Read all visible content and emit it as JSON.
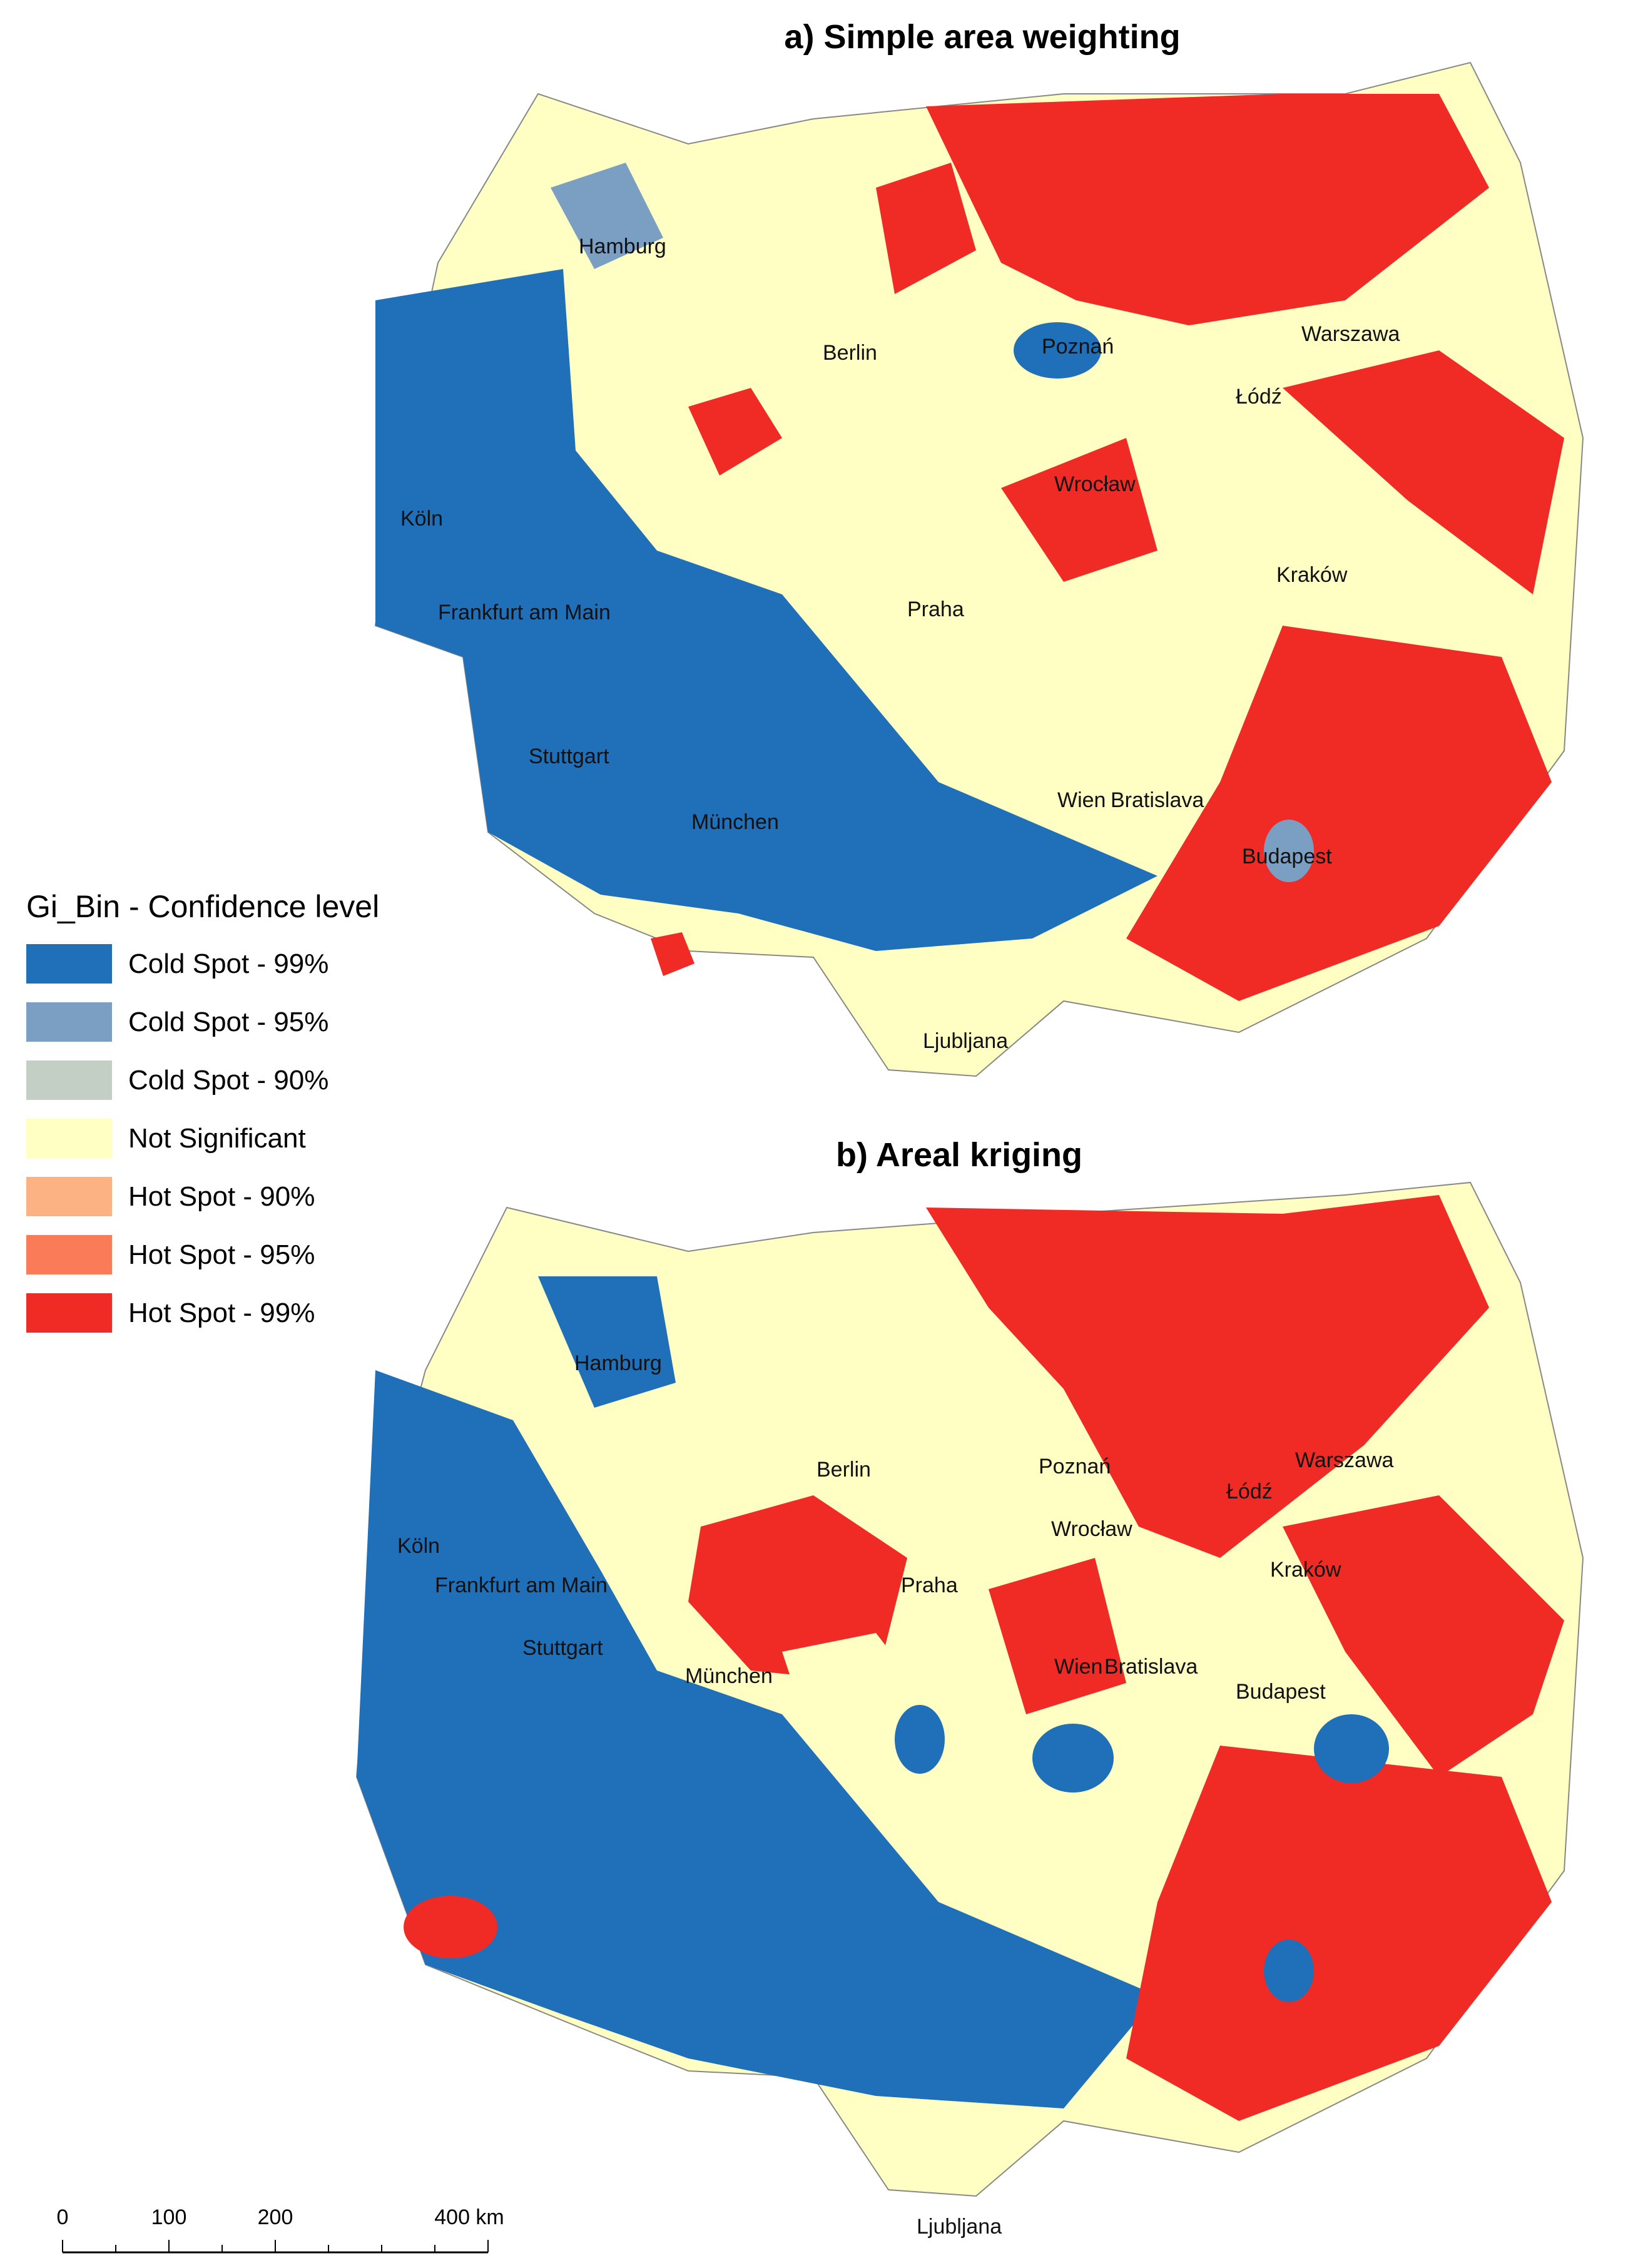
{
  "panels": [
    {
      "id": "a",
      "title": "a) Simple area weighting"
    },
    {
      "id": "b",
      "title": "b) Areal kriging"
    }
  ],
  "cities": [
    "Hamburg",
    "Berlin",
    "Poznań",
    "Warszawa",
    "Łódź",
    "Köln",
    "Wrocław",
    "Kraków",
    "Frankfurt am Main",
    "Praha",
    "Stuttgart",
    "München",
    "Wien",
    "Bratislava",
    "Budapest",
    "Ljubljana"
  ],
  "legend": {
    "title": "Gi_Bin - Confidence level",
    "items": [
      {
        "label": "Cold Spot - 99%",
        "color": "#1f6fb9"
      },
      {
        "label": "Cold Spot - 95%",
        "color": "#7b9fc3"
      },
      {
        "label": "Cold Spot - 90%",
        "color": "#c3cfc4"
      },
      {
        "label": "Not Significant",
        "color": "#ffffc4"
      },
      {
        "label": "Hot Spot - 90%",
        "color": "#fcb283"
      },
      {
        "label": "Hot Spot - 95%",
        "color": "#f97b57"
      },
      {
        "label": "Hot Spot - 99%",
        "color": "#f02b25"
      }
    ]
  },
  "scale": {
    "ticks": [
      "0",
      "100",
      "200",
      "400 km"
    ]
  }
}
